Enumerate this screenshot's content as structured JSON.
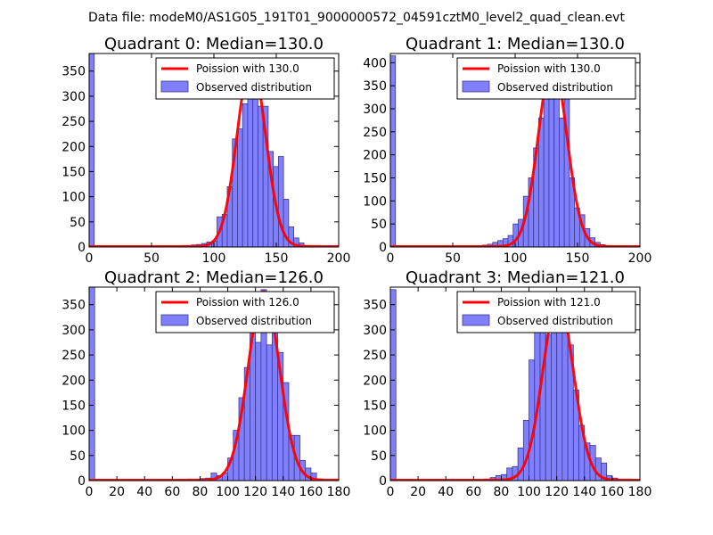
{
  "suptitle": "Data file: modeM0/AS1G05_191T01_9000000572_04591cztM0_level2_quad_clean.evt",
  "colors": {
    "hist_fill": "#7f7fff",
    "hist_edge": "#3a3a8a",
    "line": "#ff0000",
    "axes": "#000000"
  },
  "chart_data": [
    {
      "type": "bar",
      "title": "Quadrant 0: Median=130.0",
      "xlim": [
        0,
        200
      ],
      "ylim": [
        0,
        385
      ],
      "xticks": [
        0,
        50,
        100,
        150,
        200
      ],
      "yticks": [
        0,
        50,
        100,
        150,
        200,
        250,
        300,
        350
      ],
      "legend": {
        "position": "upper-right",
        "line_label": "Poission with 130.0",
        "hist_label": "Observed distribution"
      },
      "poisson_mean": 130.0,
      "poisson_peak": 368,
      "bin_width": 4.1,
      "bins": [
        [
          0,
          385
        ],
        [
          61.5,
          1
        ],
        [
          73.8,
          1
        ],
        [
          77.9,
          3
        ],
        [
          82,
          4
        ],
        [
          86.1,
          5
        ],
        [
          90.2,
          7
        ],
        [
          94.3,
          10
        ],
        [
          98.4,
          12
        ],
        [
          102.5,
          60
        ],
        [
          106.6,
          65
        ],
        [
          110.7,
          120
        ],
        [
          114.8,
          215
        ],
        [
          118.9,
          235
        ],
        [
          123,
          285
        ],
        [
          127.1,
          345
        ],
        [
          131.2,
          345
        ],
        [
          135.3,
          280
        ],
        [
          139.4,
          280
        ],
        [
          143.5,
          190
        ],
        [
          147.6,
          160
        ],
        [
          151.7,
          180
        ],
        [
          155.8,
          95
        ],
        [
          159.9,
          40
        ],
        [
          164,
          18
        ],
        [
          168.1,
          8
        ],
        [
          172.2,
          3
        ],
        [
          176.3,
          2
        ],
        [
          180.4,
          1
        ]
      ]
    },
    {
      "type": "bar",
      "title": "Quadrant 1: Median=130.0",
      "xlim": [
        0,
        200
      ],
      "ylim": [
        0,
        420
      ],
      "xticks": [
        0,
        50,
        100,
        150,
        200
      ],
      "yticks": [
        0,
        50,
        100,
        150,
        200,
        250,
        300,
        350,
        400
      ],
      "legend": {
        "position": "upper-right",
        "line_label": "Poission with 130.0",
        "hist_label": "Observed distribution"
      },
      "poisson_mean": 130.0,
      "poisson_peak": 400,
      "bin_width": 4.1,
      "bins": [
        [
          0,
          415
        ],
        [
          69.7,
          2
        ],
        [
          73.8,
          4
        ],
        [
          77.9,
          6
        ],
        [
          82,
          10
        ],
        [
          86.1,
          14
        ],
        [
          90.2,
          18
        ],
        [
          94.3,
          25
        ],
        [
          98.4,
          50
        ],
        [
          102.5,
          60
        ],
        [
          106.6,
          110
        ],
        [
          110.7,
          150
        ],
        [
          114.8,
          215
        ],
        [
          118.9,
          280
        ],
        [
          123,
          330
        ],
        [
          127.1,
          380
        ],
        [
          131.2,
          330
        ],
        [
          135.3,
          280
        ],
        [
          139.4,
          345
        ],
        [
          143.5,
          150
        ],
        [
          147.6,
          85
        ],
        [
          151.7,
          70
        ],
        [
          155.8,
          40
        ],
        [
          159.9,
          20
        ],
        [
          164,
          10
        ],
        [
          168.1,
          5
        ],
        [
          172.2,
          2
        ]
      ]
    },
    {
      "type": "bar",
      "title": "Quadrant 2: Median=126.0",
      "xlim": [
        0,
        180
      ],
      "ylim": [
        0,
        385
      ],
      "xticks": [
        0,
        20,
        40,
        60,
        80,
        100,
        120,
        140,
        160,
        180
      ],
      "yticks": [
        0,
        50,
        100,
        150,
        200,
        250,
        300,
        350
      ],
      "legend": {
        "position": "upper-right",
        "line_label": "Poission with 126.0",
        "hist_label": "Observed distribution"
      },
      "poisson_mean": 126.0,
      "poisson_peak": 375,
      "bin_width": 4.0,
      "bins": [
        [
          0,
          385
        ],
        [
          76,
          1
        ],
        [
          80,
          4
        ],
        [
          84,
          5
        ],
        [
          88,
          15
        ],
        [
          92,
          10
        ],
        [
          96,
          15
        ],
        [
          100,
          45
        ],
        [
          104,
          100
        ],
        [
          108,
          165
        ],
        [
          112,
          225
        ],
        [
          116,
          340
        ],
        [
          120,
          275
        ],
        [
          124,
          380
        ],
        [
          128,
          270
        ],
        [
          132,
          350
        ],
        [
          136,
          255
        ],
        [
          140,
          195
        ],
        [
          144,
          90
        ],
        [
          148,
          90
        ],
        [
          152,
          40
        ],
        [
          156,
          25
        ],
        [
          160,
          15
        ],
        [
          164,
          3
        ]
      ]
    },
    {
      "type": "bar",
      "title": "Quadrant 3: Median=121.0",
      "xlim": [
        0,
        180
      ],
      "ylim": [
        0,
        385
      ],
      "xticks": [
        0,
        20,
        40,
        60,
        80,
        100,
        120,
        140,
        160,
        180
      ],
      "yticks": [
        0,
        50,
        100,
        150,
        200,
        250,
        300,
        350
      ],
      "legend": {
        "position": "upper-right",
        "line_label": "Poission with 121.0",
        "hist_label": "Observed distribution"
      },
      "poisson_mean": 121.0,
      "poisson_peak": 360,
      "bin_width": 4.0,
      "bins": [
        [
          0,
          380
        ],
        [
          60,
          2
        ],
        [
          68,
          3
        ],
        [
          72,
          6
        ],
        [
          76,
          10
        ],
        [
          80,
          12
        ],
        [
          84,
          25
        ],
        [
          88,
          28
        ],
        [
          92,
          65
        ],
        [
          96,
          120
        ],
        [
          100,
          240
        ],
        [
          104,
          325
        ],
        [
          108,
          330
        ],
        [
          112,
          290
        ],
        [
          116,
          345
        ],
        [
          120,
          345
        ],
        [
          124,
          310
        ],
        [
          128,
          270
        ],
        [
          132,
          180
        ],
        [
          136,
          110
        ],
        [
          140,
          75
        ],
        [
          144,
          70
        ],
        [
          148,
          45
        ],
        [
          152,
          35
        ],
        [
          156,
          10
        ],
        [
          160,
          5
        ]
      ]
    }
  ]
}
